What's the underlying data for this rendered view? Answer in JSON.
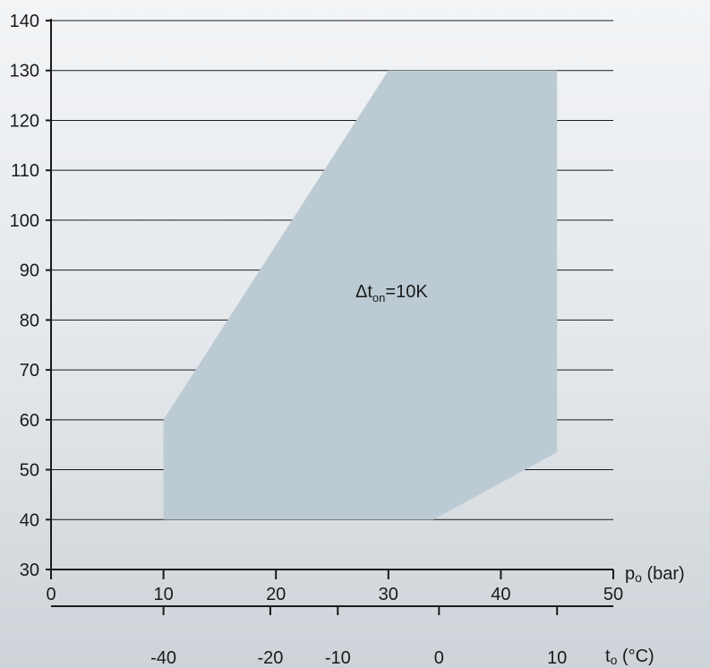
{
  "chart_data": {
    "type": "area",
    "region_label": {
      "main": "Δt",
      "sub": "on",
      "rest": "=10K"
    },
    "region_color": "#bccbd3",
    "line_color": "#1a1a1a",
    "envelope": {
      "x_unit": "p_o (bar)",
      "points": [
        {
          "x": 10,
          "y": 40
        },
        {
          "x": 10,
          "y": 60
        },
        {
          "x": 30,
          "y": 130
        },
        {
          "x": 45,
          "y": 130
        },
        {
          "x": 45,
          "y": 53.5
        },
        {
          "x": 34,
          "y": 40
        }
      ]
    },
    "y_axis": {
      "ylim": [
        30,
        140
      ],
      "ticks": [
        30,
        40,
        50,
        60,
        70,
        80,
        90,
        100,
        110,
        120,
        130,
        140
      ],
      "grid": true
    },
    "x_axis_pressure": {
      "label_main": "p",
      "label_sub": "o",
      "label_rest": " (bar)",
      "xlim": [
        0,
        50
      ],
      "ticks": [
        0,
        10,
        20,
        30,
        40,
        50
      ]
    },
    "x_axis_temperature": {
      "label_main": "t",
      "label_sub": "o",
      "label_rest": " (°C)",
      "ticks": [
        {
          "label": "-40",
          "pressure": 10
        },
        {
          "label": "-20",
          "pressure": 19.5
        },
        {
          "label": "-10",
          "pressure": 25.5
        },
        {
          "label": "0",
          "pressure": 34.5
        },
        {
          "label": "10",
          "pressure": 45
        }
      ]
    }
  }
}
